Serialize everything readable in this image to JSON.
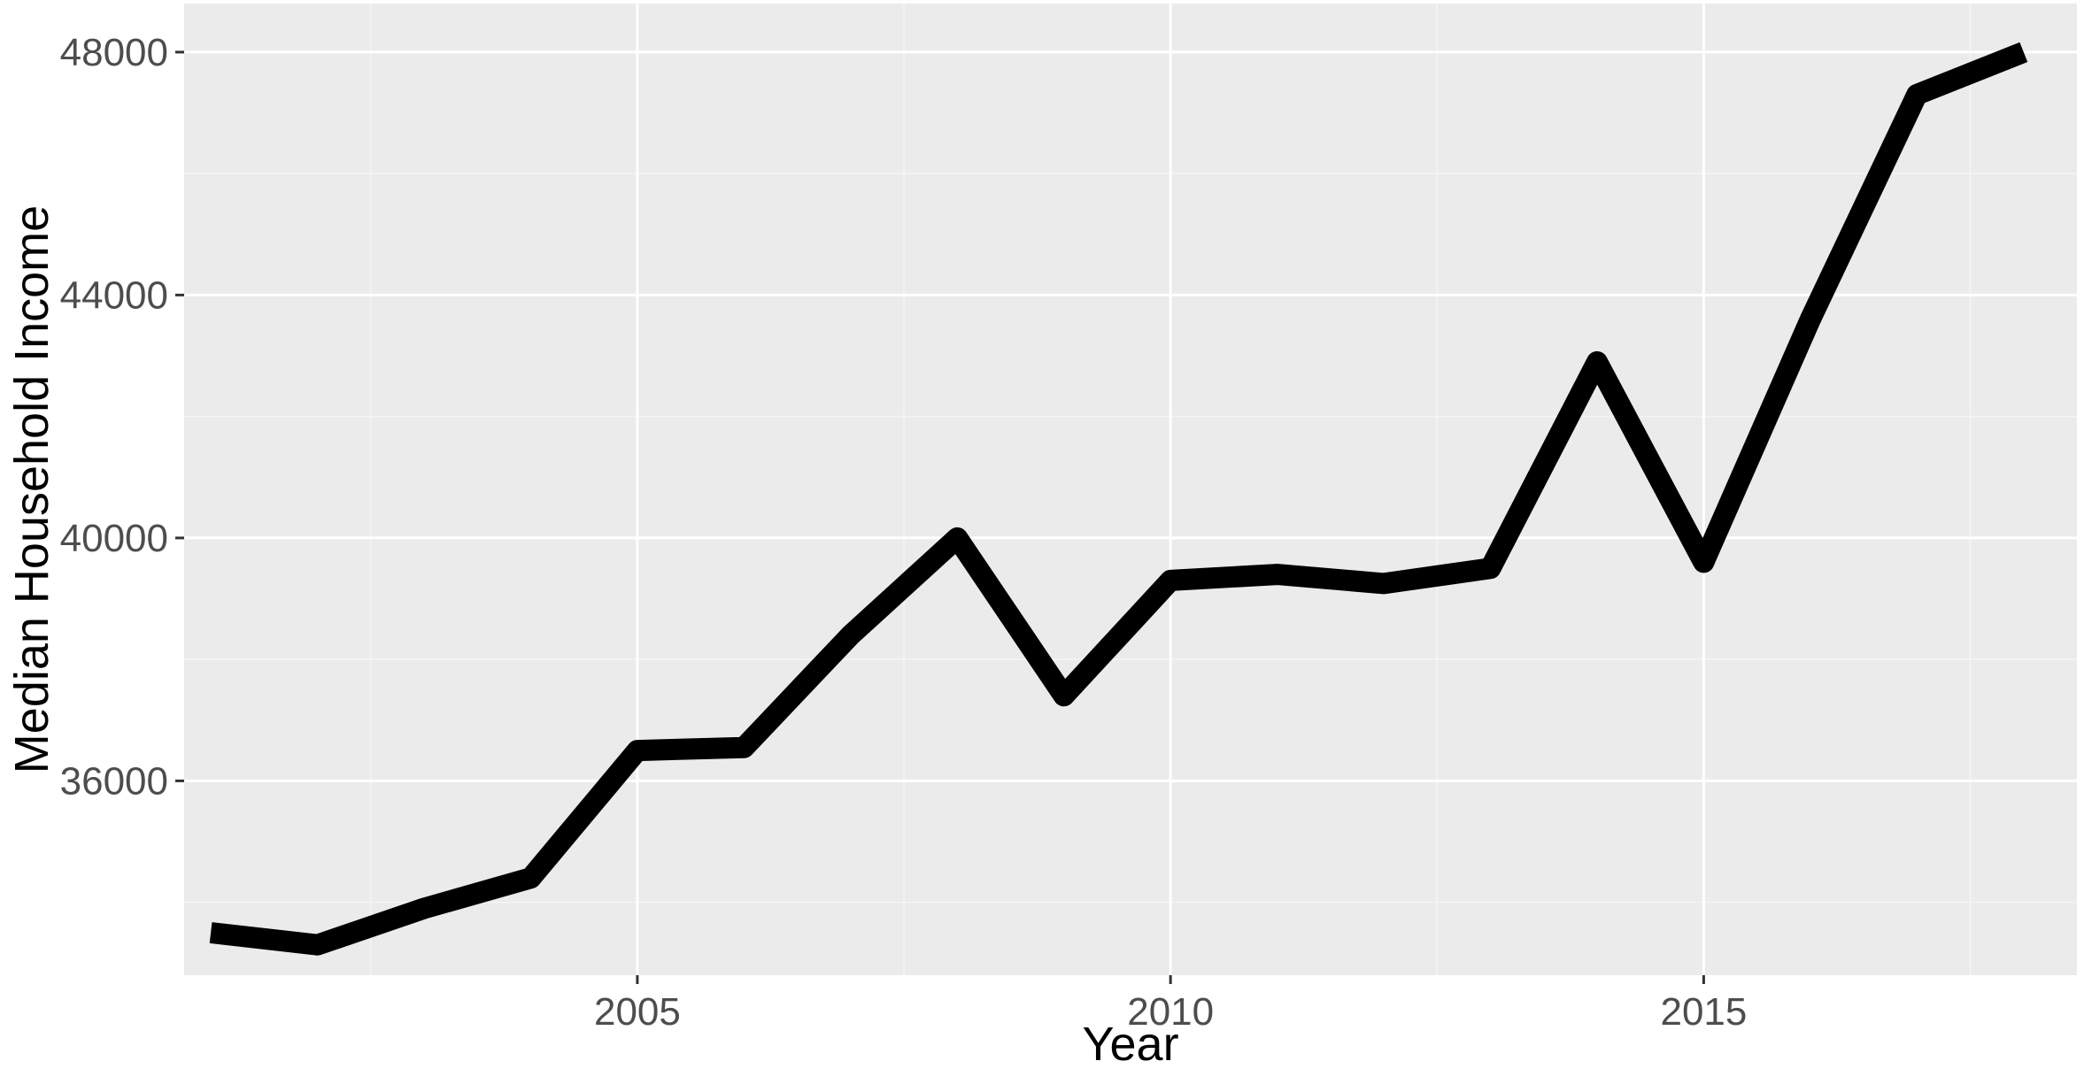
{
  "chart_data": {
    "type": "line",
    "title": "",
    "xlabel": "Year",
    "ylabel": "Median Household Income",
    "x": [
      2001,
      2002,
      2003,
      2004,
      2005,
      2006,
      2007,
      2008,
      2009,
      2010,
      2011,
      2012,
      2013,
      2014,
      2015,
      2016,
      2017,
      2018
    ],
    "series": [
      {
        "values": [
          33500,
          33300,
          33900,
          34400,
          36500,
          36550,
          38400,
          40000,
          37400,
          39300,
          39400,
          39250,
          39500,
          42900,
          39600,
          43600,
          47300,
          48000
        ]
      }
    ],
    "xlim": [
      2000.75,
      2018.5
    ],
    "ylim": [
      32800,
      48800
    ],
    "x_ticks": [
      2005,
      2010,
      2015
    ],
    "x_tick_labels": [
      "2005",
      "2010",
      "2015"
    ],
    "y_ticks": [
      36000,
      40000,
      44000,
      48000
    ],
    "y_tick_labels": [
      "36000",
      "40000",
      "44000",
      "48000"
    ],
    "grid": true,
    "legend": "none",
    "colors": {
      "panel_background": "#ebebeb",
      "grid_major": "#ffffff",
      "grid_minor": "#f5f5f5",
      "line": "#000000",
      "tick_mark": "#333333"
    }
  }
}
